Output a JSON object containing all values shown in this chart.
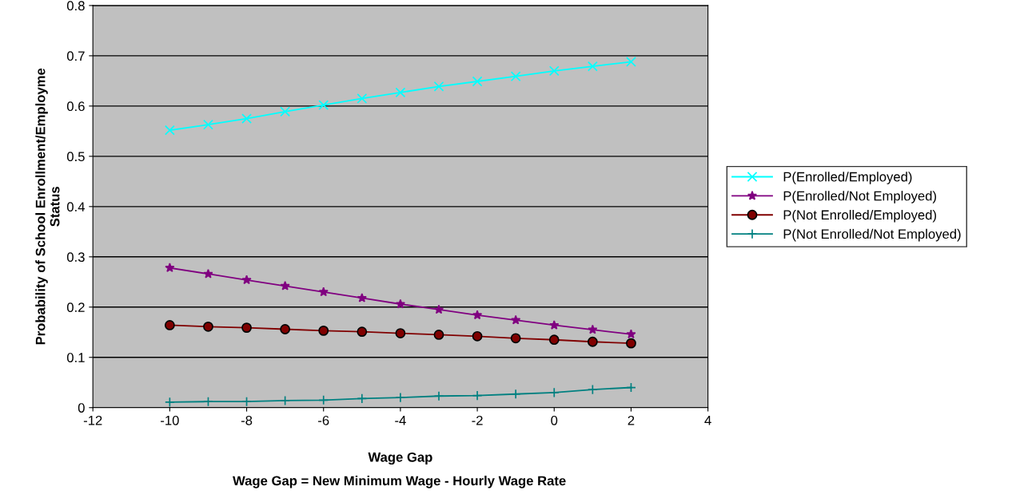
{
  "chart_data": {
    "type": "line",
    "xlabel": "Wage Gap",
    "ylabel": "Probability of School Enrollment/Employme\nStatus",
    "annotations": [
      "Wage Gap = New Minimum Wage - Hourly Wage Rate"
    ],
    "x": [
      -10,
      -9,
      -8,
      -7,
      -6,
      -5,
      -4,
      -3,
      -2,
      -1,
      0,
      1,
      2
    ],
    "series": [
      {
        "name": "P(Enrolled/Employed)",
        "color": "#00ffff",
        "marker": "cross",
        "values": [
          0.552,
          0.563,
          0.575,
          0.589,
          0.602,
          0.615,
          0.627,
          0.639,
          0.649,
          0.659,
          0.67,
          0.679,
          0.688
        ]
      },
      {
        "name": "P(Enrolled/Not Employed)",
        "color": "#800080",
        "marker": "star",
        "values": [
          0.278,
          0.266,
          0.254,
          0.242,
          0.23,
          0.218,
          0.206,
          0.195,
          0.184,
          0.174,
          0.164,
          0.155,
          0.146
        ]
      },
      {
        "name": "P(Not Enrolled/Employed)",
        "color": "#800000",
        "marker": "circle",
        "values": [
          0.164,
          0.161,
          0.159,
          0.156,
          0.153,
          0.151,
          0.148,
          0.145,
          0.142,
          0.138,
          0.135,
          0.131,
          0.128
        ]
      },
      {
        "name": "P(Not Enrolled/Not Employed)",
        "color": "#008080",
        "marker": "plus",
        "values": [
          0.011,
          0.012,
          0.012,
          0.014,
          0.015,
          0.018,
          0.02,
          0.023,
          0.024,
          0.027,
          0.03,
          0.036,
          0.04
        ]
      }
    ],
    "xlim": [
      -12,
      4
    ],
    "xticks": [
      -12,
      -10,
      -8,
      -6,
      -4,
      -2,
      0,
      2,
      4
    ],
    "ylim": [
      0,
      0.8
    ],
    "yticks": [
      0,
      0.1,
      0.2,
      0.3,
      0.4,
      0.5,
      0.6,
      0.7,
      0.8
    ],
    "grid": "y",
    "legend": "right",
    "line_style": "solid"
  }
}
